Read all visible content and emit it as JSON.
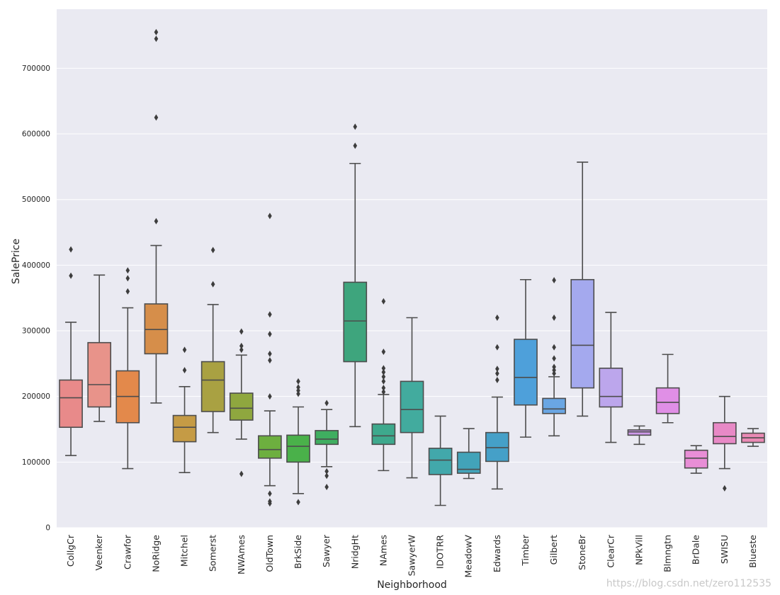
{
  "chart_data": {
    "type": "box",
    "xlabel": "Neighborhood",
    "ylabel": "SalePrice",
    "ylim": [
      0,
      790000
    ],
    "yticks": [
      0,
      100000,
      200000,
      300000,
      400000,
      500000,
      600000,
      700000
    ],
    "ytick_labels": [
      "0",
      "100000",
      "200000",
      "300000",
      "400000",
      "500000",
      "600000",
      "700000"
    ],
    "grid": true,
    "boxes": [
      {
        "name": "CollgCr",
        "color": "#e88a8a",
        "lw": 110000,
        "q1": 153000,
        "med": 198000,
        "q3": 225000,
        "uw": 313000,
        "outliers": [
          384000,
          424000
        ]
      },
      {
        "name": "Veenker",
        "color": "#e8938a",
        "lw": 162000,
        "q1": 184000,
        "med": 218000,
        "q3": 282000,
        "uw": 385000,
        "outliers": []
      },
      {
        "name": "Crawfor",
        "color": "#e3894b",
        "lw": 90000,
        "q1": 160000,
        "med": 200000,
        "q3": 239000,
        "uw": 335000,
        "outliers": [
          360000,
          380000,
          392000
        ]
      },
      {
        "name": "NoRidge",
        "color": "#d68e4a",
        "lw": 190000,
        "q1": 265000,
        "med": 302000,
        "q3": 341000,
        "uw": 430000,
        "outliers": [
          467000,
          625000,
          745000,
          755000
        ]
      },
      {
        "name": "Mitchel",
        "color": "#c59b45",
        "lw": 84000,
        "q1": 131000,
        "med": 153000,
        "q3": 171000,
        "uw": 215000,
        "outliers": [
          240000,
          271000
        ]
      },
      {
        "name": "Somerst",
        "color": "#a9a142",
        "lw": 145000,
        "q1": 177000,
        "med": 225000,
        "q3": 253000,
        "uw": 340000,
        "outliers": [
          371000,
          423000
        ]
      },
      {
        "name": "NWAmes",
        "color": "#8fa73f",
        "lw": 135000,
        "q1": 164000,
        "med": 182000,
        "q3": 205000,
        "uw": 263000,
        "outliers": [
          82000,
          271000,
          277000,
          299000
        ]
      },
      {
        "name": "OldTown",
        "color": "#6daf3f",
        "lw": 64000,
        "q1": 106000,
        "med": 119000,
        "q3": 140000,
        "uw": 178000,
        "outliers": [
          37000,
          40000,
          52000,
          200000,
          255000,
          265000,
          295000,
          325000,
          475000
        ]
      },
      {
        "name": "BrkSide",
        "color": "#4ab14a",
        "lw": 52000,
        "q1": 100000,
        "med": 124000,
        "q3": 141000,
        "uw": 184000,
        "outliers": [
          39000,
          204000,
          209000,
          214000,
          223000
        ]
      },
      {
        "name": "Sawyer",
        "color": "#3fae60",
        "lw": 93000,
        "q1": 127000,
        "med": 135000,
        "q3": 148000,
        "uw": 180000,
        "outliers": [
          62000,
          79000,
          86000,
          190000
        ]
      },
      {
        "name": "NridgHt",
        "color": "#3ea57d",
        "lw": 154000,
        "q1": 253000,
        "med": 315000,
        "q3": 374000,
        "uw": 555000,
        "outliers": [
          582000,
          611000
        ]
      },
      {
        "name": "NAmes",
        "color": "#3ea98d",
        "lw": 87000,
        "q1": 127000,
        "med": 140000,
        "q3": 158000,
        "uw": 203000,
        "outliers": [
          207000,
          213000,
          223000,
          230000,
          237000,
          243000,
          268000,
          345000
        ]
      },
      {
        "name": "SawyerW",
        "color": "#42ab9e",
        "lw": 76000,
        "q1": 145000,
        "med": 180000,
        "q3": 223000,
        "uw": 320000,
        "outliers": []
      },
      {
        "name": "IDOTRR",
        "color": "#42a8ab",
        "lw": 34000,
        "q1": 81000,
        "med": 103000,
        "q3": 121000,
        "uw": 170000,
        "outliers": []
      },
      {
        "name": "MeadowV",
        "color": "#42a3b9",
        "lw": 75000,
        "q1": 83000,
        "med": 89000,
        "q3": 115000,
        "uw": 151000,
        "outliers": []
      },
      {
        "name": "Edwards",
        "color": "#45a0c8",
        "lw": 59000,
        "q1": 101000,
        "med": 122000,
        "q3": 145000,
        "uw": 199000,
        "outliers": [
          225000,
          235000,
          242000,
          275000,
          320000
        ]
      },
      {
        "name": "Timber",
        "color": "#4ea0da",
        "lw": 138000,
        "q1": 187000,
        "med": 229000,
        "q3": 287000,
        "uw": 378000,
        "outliers": []
      },
      {
        "name": "Gilbert",
        "color": "#6aa6e3",
        "lw": 140000,
        "q1": 174000,
        "med": 181000,
        "q3": 197000,
        "uw": 230000,
        "outliers": [
          235000,
          240000,
          245000,
          258000,
          275000,
          320000,
          377000
        ]
      },
      {
        "name": "StoneBr",
        "color": "#a4a9ee",
        "lw": 170000,
        "q1": 213000,
        "med": 278000,
        "q3": 378000,
        "uw": 557000,
        "outliers": []
      },
      {
        "name": "ClearCr",
        "color": "#bca6ec",
        "lw": 130000,
        "q1": 184000,
        "med": 200000,
        "q3": 243000,
        "uw": 328000,
        "outliers": []
      },
      {
        "name": "NPkVill",
        "color": "#cf9aeb",
        "lw": 127000,
        "q1": 141000,
        "med": 146000,
        "q3": 149000,
        "uw": 155000,
        "outliers": []
      },
      {
        "name": "Blmngtn",
        "color": "#e08fe6",
        "lw": 160000,
        "q1": 174000,
        "med": 191000,
        "q3": 213000,
        "uw": 264000,
        "outliers": []
      },
      {
        "name": "BrDale",
        "color": "#e88ed6",
        "lw": 83000,
        "q1": 91000,
        "med": 106000,
        "q3": 118000,
        "uw": 125000,
        "outliers": []
      },
      {
        "name": "SWISU",
        "color": "#e889c6",
        "lw": 90000,
        "q1": 128000,
        "med": 139000,
        "q3": 160000,
        "uw": 200000,
        "outliers": [
          60000
        ]
      },
      {
        "name": "Blueste",
        "color": "#ea8ab5",
        "lw": 124000,
        "q1": 130000,
        "med": 137000,
        "q3": 144000,
        "uw": 151000,
        "outliers": []
      }
    ]
  },
  "watermark": "https://blog.csdn.net/zero112535"
}
